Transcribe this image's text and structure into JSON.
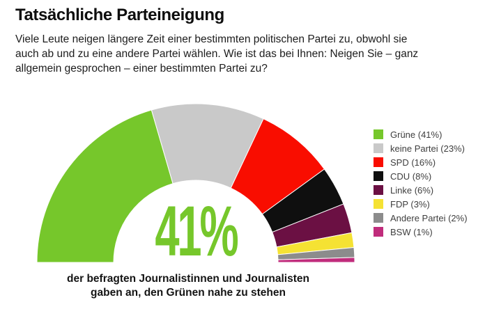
{
  "header": {
    "title": "Tatsächliche Parteineigung",
    "question": "Viele Leute neigen längere Zeit einer bestimmten politischen Partei zu, obwohl sie\nauch ab und zu eine andere Partei wählen. Wie ist das bei Ihnen: Neigen Sie – ganz\nallgemein gesprochen – einer bestimmten Partei zu?"
  },
  "chart_data": {
    "type": "pie",
    "variant": "half-donut",
    "title": "Tatsächliche Parteineigung",
    "unit": "%",
    "total": 100,
    "slices": [
      {
        "label": "Grüne",
        "value": 41,
        "color": "#76C72B"
      },
      {
        "label": "keine Partei",
        "value": 23,
        "color": "#C9C9C9"
      },
      {
        "label": "SPD",
        "value": 16,
        "color": "#F90D00"
      },
      {
        "label": "CDU",
        "value": 8,
        "color": "#0F0F0F"
      },
      {
        "label": "Linke",
        "value": 6,
        "color": "#6B1043"
      },
      {
        "label": "FDP",
        "value": 3,
        "color": "#F5E233"
      },
      {
        "label": "Andere Partei",
        "value": 2,
        "color": "#8C8C8C"
      },
      {
        "label": "BSW",
        "value": 1,
        "color": "#C02C7C"
      }
    ],
    "center_label": "41%",
    "center_label_color": "#76C72B",
    "legend_position": "right",
    "legend_format": "{label} ({value}%)",
    "annotation_lines": [
      "der befragten Journalistinnen und Journalisten",
      "gaben an, den Grünen nahe zu stehen"
    ]
  }
}
